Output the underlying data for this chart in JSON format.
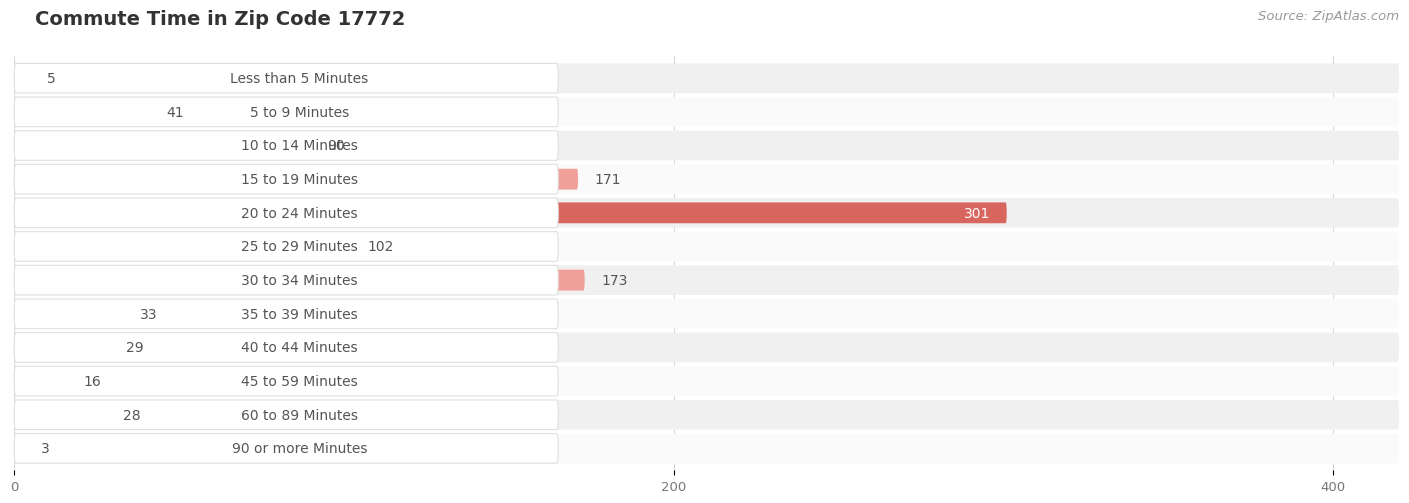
{
  "title": "Commute Time in Zip Code 17772",
  "source": "Source: ZipAtlas.com",
  "categories": [
    "Less than 5 Minutes",
    "5 to 9 Minutes",
    "10 to 14 Minutes",
    "15 to 19 Minutes",
    "20 to 24 Minutes",
    "25 to 29 Minutes",
    "30 to 34 Minutes",
    "35 to 39 Minutes",
    "40 to 44 Minutes",
    "45 to 59 Minutes",
    "60 to 89 Minutes",
    "90 or more Minutes"
  ],
  "values": [
    5,
    41,
    90,
    171,
    301,
    102,
    173,
    33,
    29,
    16,
    28,
    3
  ],
  "highlight_index": 4,
  "bar_color_normal": "#f0a099",
  "bar_color_highlight": "#d9665e",
  "label_pill_color": "#f7f7f7",
  "label_pill_border": "#e0e0e0",
  "label_color": "#555555",
  "value_color_outside": "#555555",
  "value_color_inside": "#ffffff",
  "row_bg_odd": "#f0f0f0",
  "row_bg_even": "#fafafa",
  "background_color": "#ffffff",
  "grid_color": "#d8d8d8",
  "title_color": "#333333",
  "source_color": "#999999",
  "xlim_max": 420,
  "xticks": [
    0,
    200,
    400
  ],
  "title_fontsize": 14,
  "label_fontsize": 10,
  "value_fontsize": 10,
  "source_fontsize": 9.5
}
